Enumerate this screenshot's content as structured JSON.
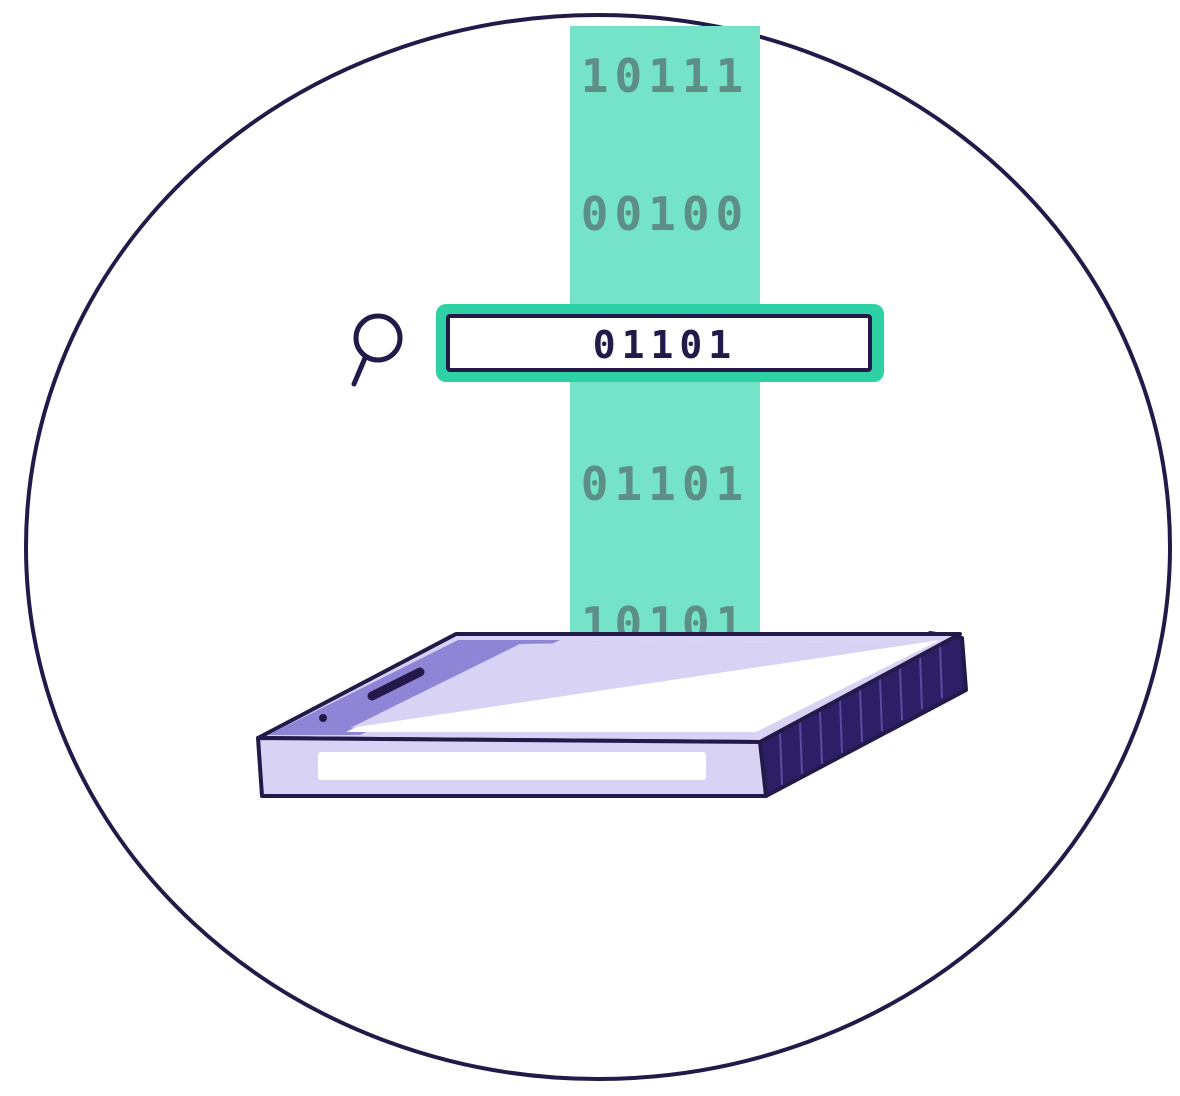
{
  "illustration": {
    "data_stream": {
      "rows": [
        "10111",
        "00100",
        "01101",
        "10101"
      ]
    },
    "search_bar": {
      "value": "01101",
      "icon": "magnifier-icon"
    },
    "device": {
      "icon": "smartphone-icon"
    }
  },
  "colors": {
    "outline": "#231a4a",
    "stream": "#74e3c8",
    "stream_text": "#5e8f86",
    "search_border": "#2ed1a4",
    "device_body": "#d8d2f5",
    "device_edge": "#8f85d6",
    "device_side": "#2d1f66",
    "background": "#ffffff"
  }
}
